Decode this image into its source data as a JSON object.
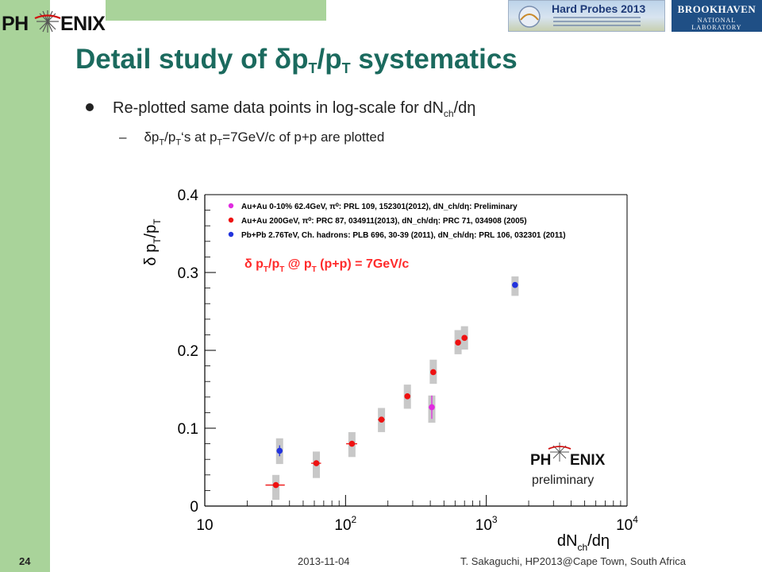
{
  "logos": {
    "phenix_left": "PH",
    "phenix_right": "ENIX",
    "banner_title": "Hard Probes 2013",
    "bnl_main": "BROOKHAVEN",
    "bnl_sub": "NATIONAL LABORATORY"
  },
  "slide": {
    "title_a": "Detail study of ",
    "title_delta": "δ",
    "title_b": "p",
    "title_sub1": "T",
    "title_c": "/p",
    "title_sub2": "T",
    "title_d": " systematics",
    "bullet1_a": "Re-plotted same data points in log-scale for dN",
    "bullet1_sub": "ch",
    "bullet1_b": "/dη",
    "bullet2_dash": "–",
    "bullet2_a": "δp",
    "bullet2_sub1": "T",
    "bullet2_b": "/p",
    "bullet2_sub2": "T",
    "bullet2_c": "‘s at p",
    "bullet2_sub3": "T",
    "bullet2_d": "=7GeV/c of p+p are plotted"
  },
  "footer": {
    "page_number": "24",
    "date": "2013-11-04",
    "author": "T. Sakaguchi, HP2013@Cape Town, South Africa"
  },
  "chart_data": {
    "type": "scatter",
    "x_scale": "log",
    "xlim": [
      10,
      10000
    ],
    "ylim": [
      0,
      0.4
    ],
    "x_ticks": [
      {
        "value": 10,
        "base": "10",
        "exp": ""
      },
      {
        "value": 100,
        "base": "10",
        "exp": "2"
      },
      {
        "value": 1000,
        "base": "10",
        "exp": "3"
      },
      {
        "value": 10000,
        "base": "10",
        "exp": "4"
      }
    ],
    "y_ticks": [
      {
        "value": 0,
        "label": "0"
      },
      {
        "value": 0.1,
        "label": "0.1"
      },
      {
        "value": 0.2,
        "label": "0.2"
      },
      {
        "value": 0.3,
        "label": "0.3"
      },
      {
        "value": 0.4,
        "label": "0.4"
      }
    ],
    "ylabel": {
      "a": "δ p",
      "s1": "T",
      "b": "/p",
      "s2": "T"
    },
    "xlabel": {
      "a": "dN",
      "s1": "ch",
      "b": "/dη"
    },
    "annotation": {
      "a": "δ p",
      "s1": "T",
      "b": "/p",
      "s2": "T",
      "c": " @ p",
      "s3": "T",
      "d": " (p+p) = 7GeV/c",
      "color": "#ff2a2a"
    },
    "watermark": {
      "logo_left": "PH",
      "logo_right": "ENIX",
      "text": "preliminary"
    },
    "grid": false,
    "legend_position": "top",
    "series": [
      {
        "name": "Au+Au 0-10% 62.4GeV, π⁰: PRL 109, 152301(2012), dN_ch/dη: Preliminary",
        "color": "#e02ce0",
        "points": [
          {
            "x": 410,
            "y": 0.127,
            "xerr": 20,
            "yerr": 0.015,
            "sys_lo": 0.107,
            "sys_hi": 0.142
          }
        ]
      },
      {
        "name": "Au+Au 200GeV, π⁰: PRC 87, 034911(2013), dN_ch/dη: PRC 71, 034908 (2005)",
        "color": "#ee1111",
        "points": [
          {
            "x": 32,
            "y": 0.027,
            "xerr": 5,
            "yerr": 0.003,
            "sys_lo": 0.008,
            "sys_hi": 0.04
          },
          {
            "x": 62,
            "y": 0.055,
            "xerr": 5,
            "yerr": 0.003,
            "sys_lo": 0.036,
            "sys_hi": 0.07
          },
          {
            "x": 111,
            "y": 0.08,
            "xerr": 10,
            "yerr": 0.003,
            "sys_lo": 0.063,
            "sys_hi": 0.095
          },
          {
            "x": 180,
            "y": 0.111,
            "xerr": 10,
            "yerr": 0.003,
            "sys_lo": 0.095,
            "sys_hi": 0.126
          },
          {
            "x": 275,
            "y": 0.141,
            "xerr": 10,
            "yerr": 0.003,
            "sys_lo": 0.125,
            "sys_hi": 0.156
          },
          {
            "x": 420,
            "y": 0.172,
            "xerr": 10,
            "yerr": 0.003,
            "sys_lo": 0.157,
            "sys_hi": 0.188
          },
          {
            "x": 630,
            "y": 0.21,
            "xerr": 15,
            "yerr": 0.003,
            "sys_lo": 0.195,
            "sys_hi": 0.226
          },
          {
            "x": 700,
            "y": 0.216,
            "xerr": 15,
            "yerr": 0.003,
            "sys_lo": 0.201,
            "sys_hi": 0.231
          }
        ]
      },
      {
        "name": "Pb+Pb 2.76TeV, Ch. hadrons: PLB 696, 30-39 (2011), dN_ch/dη: PRL 106, 032301 (2011)",
        "color": "#2233dd",
        "points": [
          {
            "x": 34,
            "y": 0.071,
            "xerr": 1,
            "yerr": 0.007,
            "sys_lo": 0.054,
            "sys_hi": 0.087
          },
          {
            "x": 1600,
            "y": 0.284,
            "xerr": 5,
            "yerr": 0.003,
            "sys_lo": 0.27,
            "sys_hi": 0.295
          }
        ]
      }
    ]
  }
}
